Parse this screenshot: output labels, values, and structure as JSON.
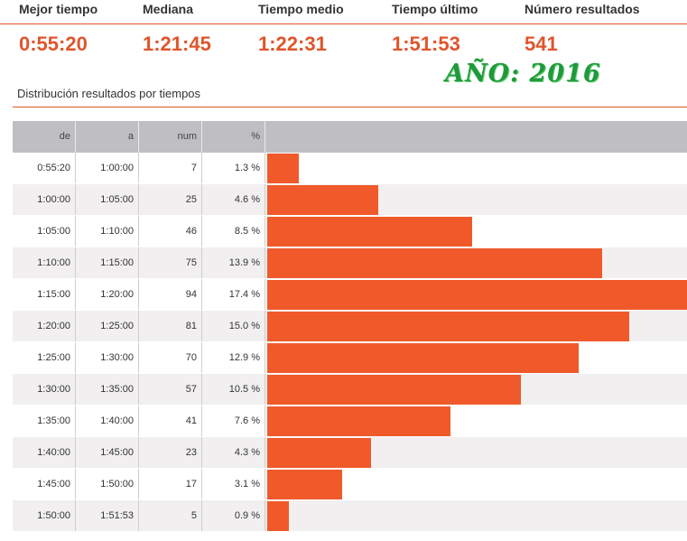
{
  "stats": [
    {
      "label": "Mejor tiempo",
      "value": "0:55:20"
    },
    {
      "label": "Mediana",
      "value": "1:21:45"
    },
    {
      "label": "Tiempo medio",
      "value": "1:22:31"
    },
    {
      "label": "Tiempo último",
      "value": "1:51:53"
    },
    {
      "label": "Número resultados",
      "value": "541"
    }
  ],
  "year_stamp": "AÑO: 2016",
  "colors": {
    "accent": "#e0552b",
    "bar": "#f05a2b",
    "header": "#bfbfc3",
    "row_alt": "#f1efef",
    "stamp": "#1f9a3a"
  },
  "chart_data": {
    "type": "bar",
    "title": "Distribución resultados por tiempos",
    "orientation": "horizontal",
    "columns": [
      "de",
      "a",
      "num",
      "%"
    ],
    "rows": [
      {
        "de": "0:55:20",
        "a": "1:00:00",
        "num": 7,
        "pct": 1.3,
        "pct_label": "1.3 %"
      },
      {
        "de": "1:00:00",
        "a": "1:05:00",
        "num": 25,
        "pct": 4.6,
        "pct_label": "4.6 %"
      },
      {
        "de": "1:05:00",
        "a": "1:10:00",
        "num": 46,
        "pct": 8.5,
        "pct_label": "8.5 %"
      },
      {
        "de": "1:10:00",
        "a": "1:15:00",
        "num": 75,
        "pct": 13.9,
        "pct_label": "13.9 %"
      },
      {
        "de": "1:15:00",
        "a": "1:20:00",
        "num": 94,
        "pct": 17.4,
        "pct_label": "17.4 %"
      },
      {
        "de": "1:20:00",
        "a": "1:25:00",
        "num": 81,
        "pct": 15.0,
        "pct_label": "15.0 %"
      },
      {
        "de": "1:25:00",
        "a": "1:30:00",
        "num": 70,
        "pct": 12.9,
        "pct_label": "12.9 %"
      },
      {
        "de": "1:30:00",
        "a": "1:35:00",
        "num": 57,
        "pct": 10.5,
        "pct_label": "10.5 %"
      },
      {
        "de": "1:35:00",
        "a": "1:40:00",
        "num": 41,
        "pct": 7.6,
        "pct_label": "7.6 %"
      },
      {
        "de": "1:40:00",
        "a": "1:45:00",
        "num": 23,
        "pct": 4.3,
        "pct_label": "4.3 %"
      },
      {
        "de": "1:45:00",
        "a": "1:50:00",
        "num": 17,
        "pct": 3.1,
        "pct_label": "3.1 %"
      },
      {
        "de": "1:50:00",
        "a": "1:51:53",
        "num": 5,
        "pct": 0.9,
        "pct_label": "0.9 %"
      }
    ]
  }
}
